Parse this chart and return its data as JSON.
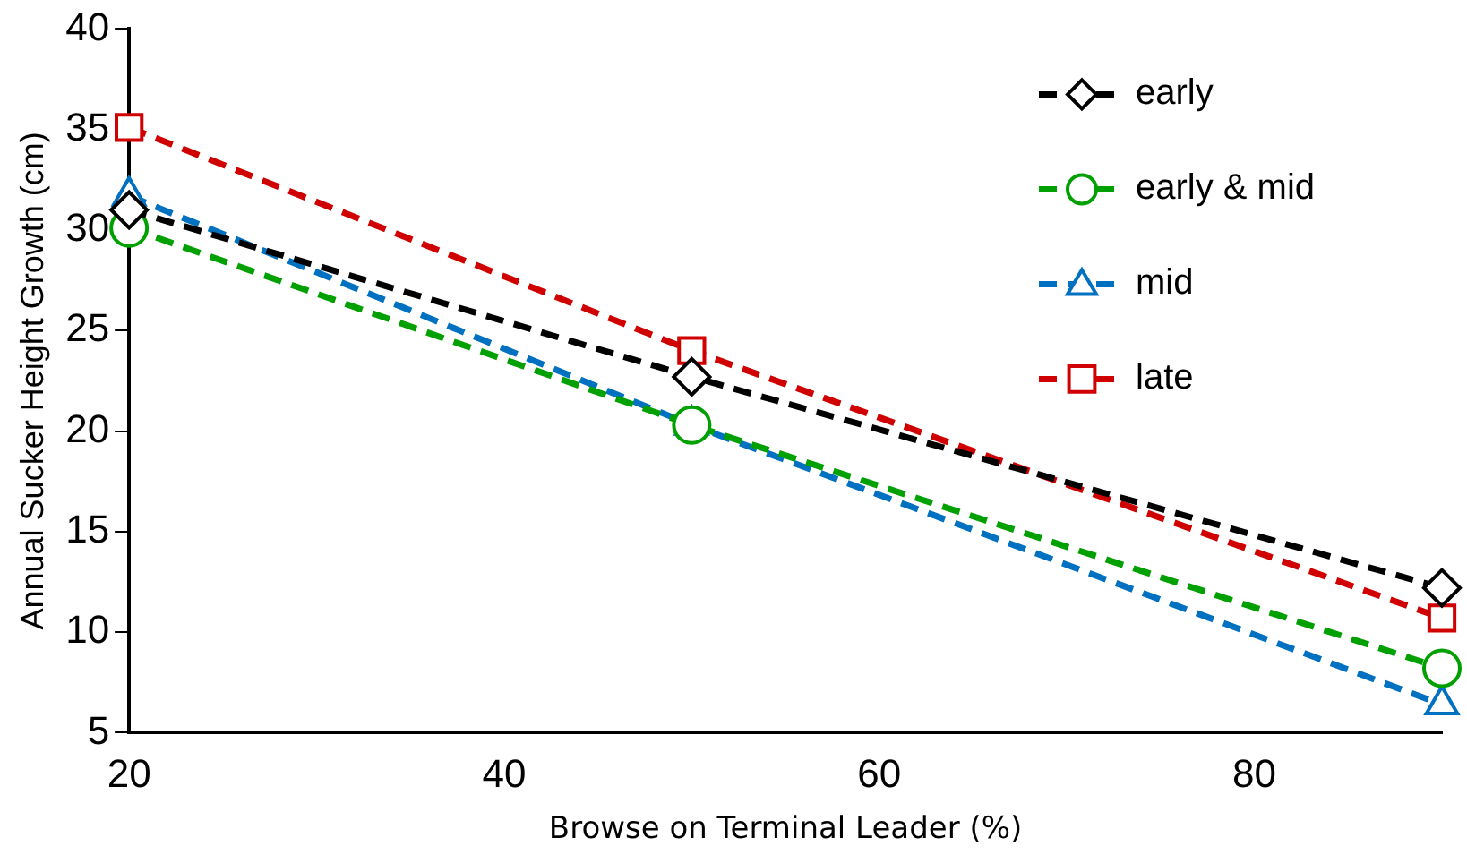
{
  "chart_data": {
    "type": "line",
    "xlabel": "Browse on Terminal Leader (%)",
    "ylabel": "Annual Sucker Height Growth (cm)",
    "x": [
      20,
      50,
      90
    ],
    "series": [
      {
        "name": "early",
        "color": "#000000",
        "marker": "diamond",
        "values": [
          31.0,
          22.7,
          12.2
        ]
      },
      {
        "name": "early & mid",
        "color": "#00a000",
        "marker": "circle",
        "values": [
          30.1,
          20.3,
          8.2
        ]
      },
      {
        "name": "mid",
        "color": "#0070c0",
        "marker": "triangle",
        "values": [
          31.7,
          20.3,
          6.4
        ]
      },
      {
        "name": "late",
        "color": "#d00000",
        "marker": "square",
        "values": [
          35.1,
          24.0,
          10.7
        ]
      }
    ],
    "xlim": [
      20,
      90
    ],
    "xticks": [
      20,
      40,
      60,
      80
    ],
    "ylim": [
      5,
      40
    ],
    "yticks": [
      5,
      10,
      15,
      20,
      25,
      30,
      35,
      40
    ],
    "grid": false,
    "legend": "top right",
    "line_style": "dashed"
  }
}
